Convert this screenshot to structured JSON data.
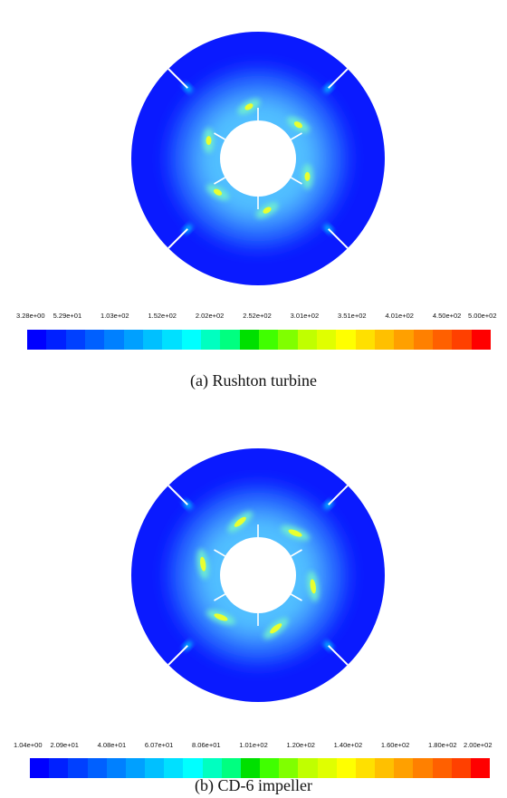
{
  "panels": [
    {
      "caption": "(a) Rushton turbine",
      "impeller": "rushton",
      "blade_count": 6,
      "baffle_count": 4,
      "colorbar_ticks": [
        "3.28e+00",
        "5.29e+01",
        "1.03e+02",
        "1.52e+02",
        "2.02e+02",
        "2.52e+02",
        "3.01e+02",
        "3.51e+02",
        "4.01e+02",
        "4.50e+02",
        "5.00e+02"
      ]
    },
    {
      "caption": "(b) CD-6 impeller",
      "impeller": "cd-6",
      "blade_count": 6,
      "baffle_count": 4,
      "colorbar_ticks": [
        "1.04e+00",
        "2.09e+01",
        "4.08e+01",
        "6.07e+01",
        "8.06e+01",
        "1.01e+02",
        "1.20e+02",
        "1.40e+02",
        "1.60e+02",
        "1.80e+02",
        "2.00e+02"
      ]
    }
  ],
  "colormap": [
    "#0000ff",
    "#0020ff",
    "#0040ff",
    "#0060ff",
    "#0080ff",
    "#00a0ff",
    "#00c0ff",
    "#00e0ff",
    "#00ffff",
    "#00ffc0",
    "#00ff80",
    "#00e000",
    "#40ff00",
    "#80ff00",
    "#c0ff00",
    "#e0ff00",
    "#ffff00",
    "#ffe000",
    "#ffc000",
    "#ffa000",
    "#ff8000",
    "#ff6000",
    "#ff4000",
    "#ff0000"
  ]
}
